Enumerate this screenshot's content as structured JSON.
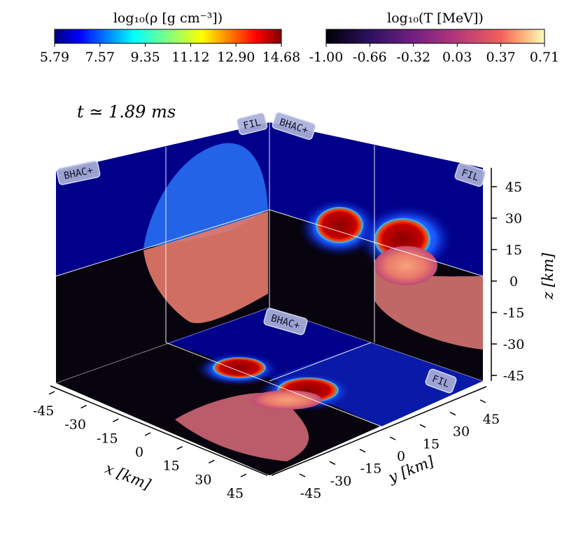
{
  "figure": {
    "time_label": "t ≃ 1.89 ms",
    "colors": {
      "background_plane": "#00008b",
      "dark_plane": "#0a0612",
      "tag_fill": "#aab0d8",
      "tag_text": "#10122a"
    }
  },
  "colorbars": [
    {
      "title": "log₁₀(ρ [g cm⁻³])",
      "colormap": "jet",
      "ticks": [
        "5.79",
        "7.57",
        "9.35",
        "11.12",
        "12.90",
        "14.68"
      ],
      "range": [
        5.79,
        14.68
      ]
    },
    {
      "title": "log₁₀(T [MeV])",
      "colormap": "magma",
      "ticks": [
        "-1.00",
        "-0.66",
        "-0.32",
        "0.03",
        "0.37",
        "0.71"
      ],
      "range": [
        -1.0,
        0.71
      ]
    }
  ],
  "chart_data": {
    "type": "heatmap",
    "description_free": true,
    "slices": [
      {
        "plane": "xz",
        "panels": [
          "BHAC+",
          "FIL"
        ]
      },
      {
        "plane": "yz",
        "panels": [
          "BHAC+",
          "FIL"
        ]
      },
      {
        "plane": "xy",
        "panels": [
          "BHAC+",
          "FIL"
        ]
      }
    ],
    "axes": {
      "x": {
        "label": "x [km]",
        "ticks": [
          "-45",
          "-30",
          "-15",
          "0",
          "15",
          "30",
          "45"
        ],
        "range": [
          -45,
          45
        ]
      },
      "y": {
        "label": "y [km]",
        "ticks": [
          "-45",
          "-30",
          "-15",
          "0",
          "15",
          "30",
          "45"
        ],
        "range": [
          -45,
          45
        ]
      },
      "z": {
        "label": "z [km]",
        "ticks": [
          "45",
          "30",
          "15",
          "0",
          "-15",
          "-30",
          "-45"
        ],
        "range": [
          -45,
          45
        ]
      }
    },
    "panel_labels": [
      "BHAC+",
      "FIL",
      "BHAC+",
      "FIL",
      "BHAC+",
      "FIL"
    ]
  }
}
